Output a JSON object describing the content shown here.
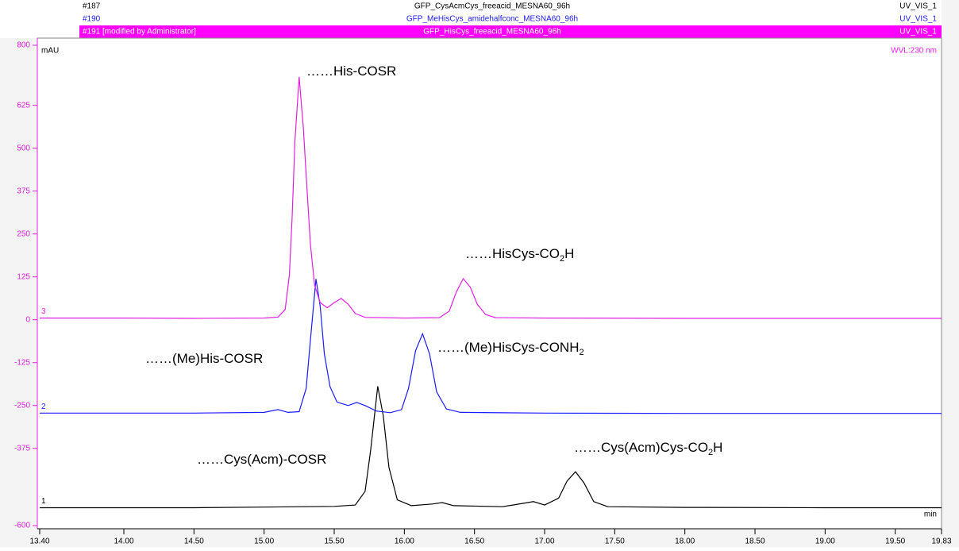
{
  "chart_data": {
    "type": "line",
    "y_unit": "mAU",
    "x_unit": "min",
    "wavelength": "WVL:230 nm",
    "xlim": [
      13.4,
      19.83
    ],
    "ylim": [
      -600,
      800
    ],
    "xticks": [
      {
        "value": 13.4,
        "label": "13.40"
      },
      {
        "value": 14,
        "label": "14.00"
      },
      {
        "value": 14.5,
        "label": "14.50"
      },
      {
        "value": 15,
        "label": "15.00"
      },
      {
        "value": 15.5,
        "label": "15.50"
      },
      {
        "value": 16,
        "label": "16.00"
      },
      {
        "value": 16.5,
        "label": "16.50"
      },
      {
        "value": 17,
        "label": "17.00"
      },
      {
        "value": 17.5,
        "label": "17.50"
      },
      {
        "value": 18,
        "label": "18.00"
      },
      {
        "value": 18.5,
        "label": "18.50"
      },
      {
        "value": 19,
        "label": "19.00"
      },
      {
        "value": 19.5,
        "label": "19.50"
      },
      19.83
    ],
    "yticks": [
      800,
      625,
      500,
      375,
      250,
      125,
      0,
      -125,
      -250,
      -375,
      -600
    ],
    "series": [
      {
        "id": "#187",
        "name": "GFP_CysAcmCys_freeacid_MESNA60_96h",
        "channel": "UV_VIS_1",
        "trace": "1",
        "color": "#000000",
        "x": [
          13.4,
          14.5,
          15.0,
          15.5,
          15.65,
          15.72,
          15.76,
          15.81,
          15.85,
          15.89,
          15.95,
          16.05,
          16.2,
          16.27,
          16.35,
          16.7,
          16.85,
          16.92,
          17.0,
          17.1,
          17.16,
          17.22,
          17.28,
          17.35,
          17.45,
          18.0,
          19.0,
          19.83
        ],
        "values": [
          -548,
          -548,
          -546,
          -544,
          -540,
          -500,
          -380,
          -194,
          -280,
          -430,
          -525,
          -542,
          -537,
          -533,
          -542,
          -545,
          -535,
          -530,
          -540,
          -520,
          -470,
          -443,
          -475,
          -530,
          -545,
          -547,
          -548,
          -548
        ]
      },
      {
        "id": "#190",
        "name": "GFP_MeHisCys_amidehalfconc_MESNA60_96h",
        "channel": "UV_VIS_1",
        "trace": "2",
        "color": "#1a1aff",
        "x": [
          13.4,
          14.5,
          15.0,
          15.1,
          15.17,
          15.25,
          15.3,
          15.33,
          15.37,
          15.4,
          15.43,
          15.47,
          15.52,
          15.6,
          15.66,
          15.72,
          15.8,
          15.9,
          15.98,
          16.03,
          16.08,
          16.13,
          16.18,
          16.23,
          16.3,
          16.4,
          17.0,
          18.0,
          19.0,
          19.83
        ],
        "values": [
          -272,
          -272,
          -270,
          -262,
          -270,
          -268,
          -200,
          -60,
          119,
          40,
          -100,
          -195,
          -240,
          -250,
          -241,
          -250,
          -266,
          -271,
          -262,
          -200,
          -90,
          -41,
          -100,
          -210,
          -260,
          -270,
          -272,
          -273,
          -273,
          -273
        ]
      },
      {
        "id": "#191 [modified by Administrator]",
        "name": "GFP_HisCys_freeacid_MESNA60_96h",
        "channel": "UV_VIS_1",
        "trace": "3",
        "color": "#e020e0",
        "x": [
          13.4,
          14.0,
          14.5,
          15.0,
          15.1,
          15.15,
          15.18,
          15.2,
          15.22,
          15.25,
          15.28,
          15.3,
          15.33,
          15.36,
          15.4,
          15.45,
          15.5,
          15.55,
          15.6,
          15.65,
          15.72,
          16.0,
          16.25,
          16.32,
          16.37,
          16.42,
          16.47,
          16.52,
          16.58,
          16.65,
          17.0,
          18.0,
          19.0,
          19.83
        ],
        "values": [
          5,
          5,
          4,
          5,
          8,
          30,
          130,
          300,
          520,
          708,
          560,
          420,
          220,
          100,
          50,
          35,
          50,
          62,
          45,
          18,
          7,
          5,
          6,
          25,
          80,
          120,
          95,
          45,
          15,
          6,
          5,
          4,
          4,
          4
        ]
      }
    ],
    "annotations": [
      {
        "text": "……His-COSR"
      },
      {
        "text": "……HisCys-CO",
        "sub": "2",
        "tail": "H"
      },
      {
        "text": "……(Me)His-COSR"
      },
      {
        "text": "……(Me)HisCys-CONH",
        "sub": "2"
      },
      {
        "text": "……Cys(Acm)-COSR"
      },
      {
        "text": "……Cys(Acm)Cys-CO",
        "sub": "2",
        "tail": "H"
      }
    ]
  }
}
